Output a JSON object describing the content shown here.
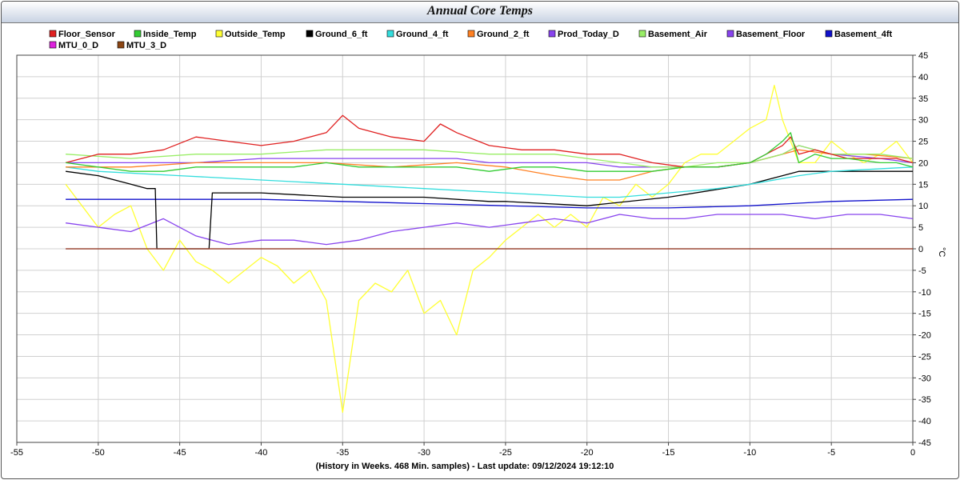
{
  "chart_data": {
    "type": "line",
    "title": "Annual Core Temps",
    "xlabel": "(History in Weeks. 468 Min. samples) - Last update: 09/12/2024 19:12:10",
    "ylabel": "°C",
    "xlim": [
      -55,
      0
    ],
    "ylim": [
      -45,
      45
    ],
    "x_ticks": [
      -55,
      -50,
      -45,
      -40,
      -35,
      -30,
      -25,
      -20,
      -15,
      -10,
      -5,
      0
    ],
    "y_ticks": [
      45,
      40,
      35,
      30,
      25,
      20,
      15,
      10,
      5,
      0,
      -5,
      -10,
      -15,
      -20,
      -25,
      -30,
      -35,
      -40,
      -45
    ],
    "y_axis_side": "right",
    "grid": true,
    "legend_position": "top",
    "series": [
      {
        "name": "Floor_Sensor",
        "color": "#e02020",
        "x": [
          -52,
          -50,
          -48,
          -46,
          -44,
          -42,
          -40,
          -38,
          -36,
          -35,
          -34,
          -32,
          -30,
          -29,
          -28,
          -26,
          -24,
          -22,
          -20,
          -18,
          -16,
          -14,
          -12,
          -10,
          -9,
          -8,
          -7.5,
          -7,
          -6,
          -5,
          -4,
          -2,
          -1,
          0
        ],
        "y": [
          20,
          22,
          22,
          23,
          26,
          25,
          24,
          25,
          27,
          31,
          28,
          26,
          25,
          29,
          27,
          24,
          23,
          23,
          22,
          22,
          20,
          19,
          19,
          20,
          22,
          24,
          26,
          22,
          23,
          22,
          21,
          21,
          21,
          20
        ]
      },
      {
        "name": "Inside_Temp",
        "color": "#33cc33",
        "x": [
          -52,
          -50,
          -48,
          -46,
          -44,
          -42,
          -40,
          -38,
          -36,
          -34,
          -32,
          -30,
          -28,
          -26,
          -24,
          -22,
          -20,
          -18,
          -16,
          -14,
          -12,
          -10,
          -9,
          -8,
          -7.5,
          -7,
          -6,
          -5,
          -4,
          -2,
          -1,
          0
        ],
        "y": [
          20,
          19,
          18,
          18,
          19,
          19,
          19,
          19,
          20,
          19,
          19,
          19,
          19,
          18,
          19,
          19,
          18,
          18,
          18,
          19,
          19,
          20,
          22,
          25,
          27,
          20,
          22,
          21,
          21,
          20,
          20,
          19
        ]
      },
      {
        "name": "Outside_Temp",
        "color": "#ffff33",
        "x": [
          -52,
          -51,
          -50,
          -49,
          -48,
          -47,
          -46,
          -45,
          -44,
          -43,
          -42,
          -41,
          -40,
          -39,
          -38,
          -37,
          -36,
          -35.5,
          -35,
          -34.5,
          -34,
          -33,
          -32,
          -31,
          -30,
          -29,
          -28,
          -27,
          -26,
          -25,
          -24,
          -23,
          -22,
          -21,
          -20,
          -19,
          -18,
          -17,
          -16,
          -15,
          -14,
          -13,
          -12,
          -11,
          -10,
          -9,
          -8.5,
          -8,
          -7.5,
          -7,
          -6,
          -5,
          -4,
          -3,
          -2,
          -1,
          0
        ],
        "y": [
          15,
          10,
          5,
          8,
          10,
          0,
          -5,
          2,
          -3,
          -5,
          -8,
          -5,
          -2,
          -4,
          -8,
          -5,
          -12,
          -25,
          -38,
          -25,
          -12,
          -8,
          -10,
          -5,
          -15,
          -12,
          -20,
          -5,
          -2,
          2,
          5,
          8,
          5,
          8,
          5,
          12,
          10,
          15,
          12,
          15,
          20,
          22,
          22,
          25,
          28,
          30,
          38,
          30,
          25,
          20,
          20,
          25,
          22,
          20,
          22,
          25,
          20
        ]
      },
      {
        "name": "Ground_6_ft",
        "color": "#000000",
        "x": [
          -52,
          -50,
          -48,
          -47,
          -46.5,
          -46.4,
          -45,
          -43.2,
          -43,
          -40,
          -35,
          -30,
          -26,
          -25,
          -20,
          -15,
          -10,
          -8,
          -7,
          -5,
          0
        ],
        "y": [
          18,
          17,
          15,
          14,
          14,
          0,
          0,
          0,
          13,
          13,
          12,
          12,
          11,
          11,
          10,
          12,
          15,
          17,
          18,
          18,
          18
        ]
      },
      {
        "name": "Ground_4_ft",
        "color": "#33dddd",
        "x": [
          -52,
          -50,
          -45,
          -40,
          -35,
          -30,
          -25,
          -20,
          -18,
          -15,
          -12,
          -10,
          -7,
          -5,
          0
        ],
        "y": [
          19,
          18,
          17,
          16,
          15,
          14,
          13,
          12,
          12,
          13,
          14,
          15,
          17,
          18,
          19
        ]
      },
      {
        "name": "Ground_2_ft",
        "color": "#ff8022",
        "x": [
          -52,
          -48,
          -44,
          -40,
          -36,
          -32,
          -28,
          -25,
          -22,
          -20,
          -18,
          -16,
          -14,
          -12,
          -10,
          -8,
          -7,
          -5,
          -3,
          0
        ],
        "y": [
          19,
          19,
          20,
          20,
          20,
          19,
          20,
          19,
          17,
          16,
          16,
          18,
          19,
          19,
          20,
          22,
          23,
          22,
          22,
          21
        ]
      },
      {
        "name": "Prod_Today_D",
        "color": "#8844ee",
        "x": [
          -52,
          -50,
          -48,
          -46,
          -44,
          -42,
          -40,
          -38,
          -36,
          -34,
          -32,
          -30,
          -28,
          -26,
          -24,
          -22,
          -20,
          -18,
          -16,
          -14,
          -12,
          -10,
          -8,
          -6,
          -4,
          -2,
          0
        ],
        "y": [
          6,
          5,
          4,
          7,
          3,
          1,
          2,
          2,
          1,
          2,
          4,
          5,
          6,
          5,
          6,
          7,
          6,
          8,
          7,
          7,
          8,
          8,
          8,
          7,
          8,
          8,
          7
        ]
      },
      {
        "name": "Basement_Air",
        "color": "#99ee66",
        "x": [
          -52,
          -48,
          -44,
          -40,
          -36,
          -34,
          -30,
          -26,
          -24,
          -22,
          -20,
          -18,
          -16,
          -14,
          -12,
          -10,
          -8,
          -7,
          -5,
          -2,
          0
        ],
        "y": [
          22,
          21,
          22,
          22,
          23,
          23,
          23,
          22,
          22,
          22,
          21,
          20,
          19,
          19,
          20,
          20,
          22,
          24,
          22,
          22,
          21
        ]
      },
      {
        "name": "Basement_Floor",
        "color": "#8844ee",
        "x": [
          -52,
          -48,
          -44,
          -40,
          -36,
          -32,
          -30,
          -28,
          -26,
          -24,
          -22,
          -20,
          -18,
          -16,
          -14,
          -12,
          -10,
          -8,
          -7,
          -5,
          -2,
          0
        ],
        "y": [
          20,
          20,
          20,
          21,
          21,
          21,
          21,
          21,
          20,
          20,
          20,
          20,
          19,
          19,
          19,
          19,
          20,
          22,
          24,
          22,
          21,
          20
        ]
      },
      {
        "name": "Basement_4ft",
        "color": "#1111cc",
        "x": [
          -52,
          -47,
          -46.5,
          -41,
          -40,
          -35,
          -30,
          -25,
          -20,
          -15,
          -10,
          -5,
          0
        ],
        "y": [
          11.5,
          11.5,
          11.5,
          11.5,
          11.5,
          11,
          10.5,
          10,
          9.5,
          9.5,
          10,
          11,
          11.5
        ]
      },
      {
        "name": "MTU_0_D",
        "color": "#dd22dd",
        "x": [
          -52,
          0
        ],
        "y": [
          0,
          0
        ]
      },
      {
        "name": "MTU_3_D",
        "color": "#8b4513",
        "x": [
          -52,
          0
        ],
        "y": [
          0,
          0
        ]
      }
    ]
  }
}
